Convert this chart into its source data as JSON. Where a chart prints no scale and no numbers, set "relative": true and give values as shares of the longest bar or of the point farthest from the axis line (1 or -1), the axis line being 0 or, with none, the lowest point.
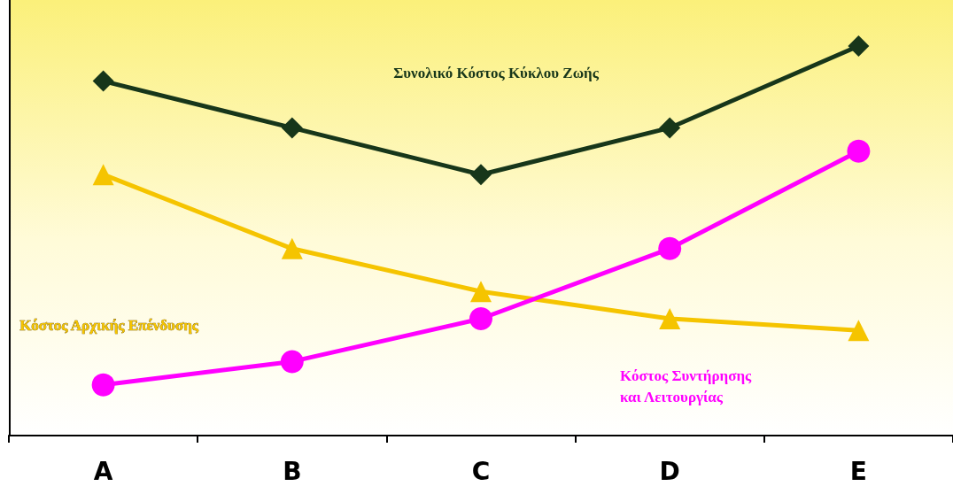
{
  "chart_data": {
    "type": "line",
    "relative": true,
    "categories": [
      "A",
      "B",
      "C",
      "D",
      "E"
    ],
    "legend": false,
    "grid": false,
    "series": [
      {
        "name": "Συνολικό Κόστος Κύκλου Ζωής",
        "color": "#17361a",
        "marker": "diamond",
        "values": [
          0.91,
          0.79,
          0.67,
          0.79,
          1
        ]
      },
      {
        "name": "Κόστος Αρχικής Επένδυσης",
        "color": "#f5c400",
        "marker": "triangle",
        "values": [
          0.67,
          0.48,
          0.37,
          0.3,
          0.27
        ]
      },
      {
        "name": "Κόστος Συντήρησης και Λειτουργίας",
        "color": "#ff00ff",
        "marker": "circle",
        "values": [
          0.13,
          0.19,
          0.3,
          0.48,
          0.73
        ]
      }
    ]
  }
}
